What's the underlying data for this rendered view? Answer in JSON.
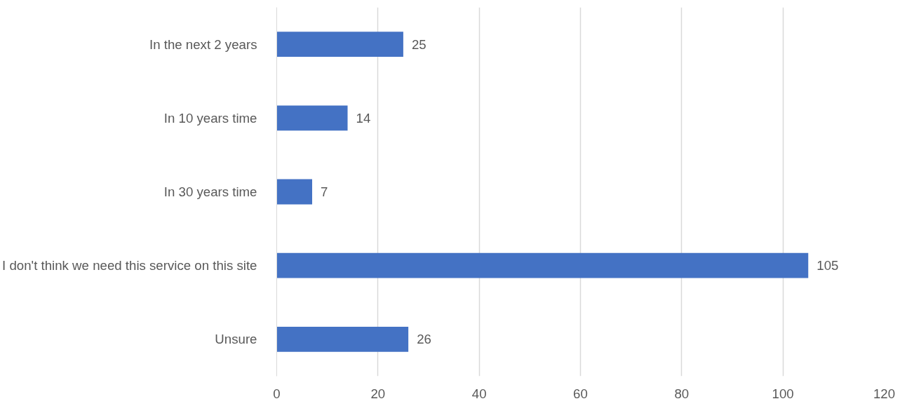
{
  "chart_data": {
    "type": "bar",
    "orientation": "horizontal",
    "categories": [
      "In the next 2 years",
      "In 10 years time",
      "In 30 years time",
      "I don't think we need this service on this site",
      "Unsure"
    ],
    "values": [
      25,
      14,
      7,
      105,
      26
    ],
    "color": "#4472c4",
    "xlim": [
      0,
      120
    ],
    "xticks": [
      0,
      20,
      40,
      60,
      80,
      100,
      120
    ],
    "grid": "x",
    "data_labels": true
  }
}
